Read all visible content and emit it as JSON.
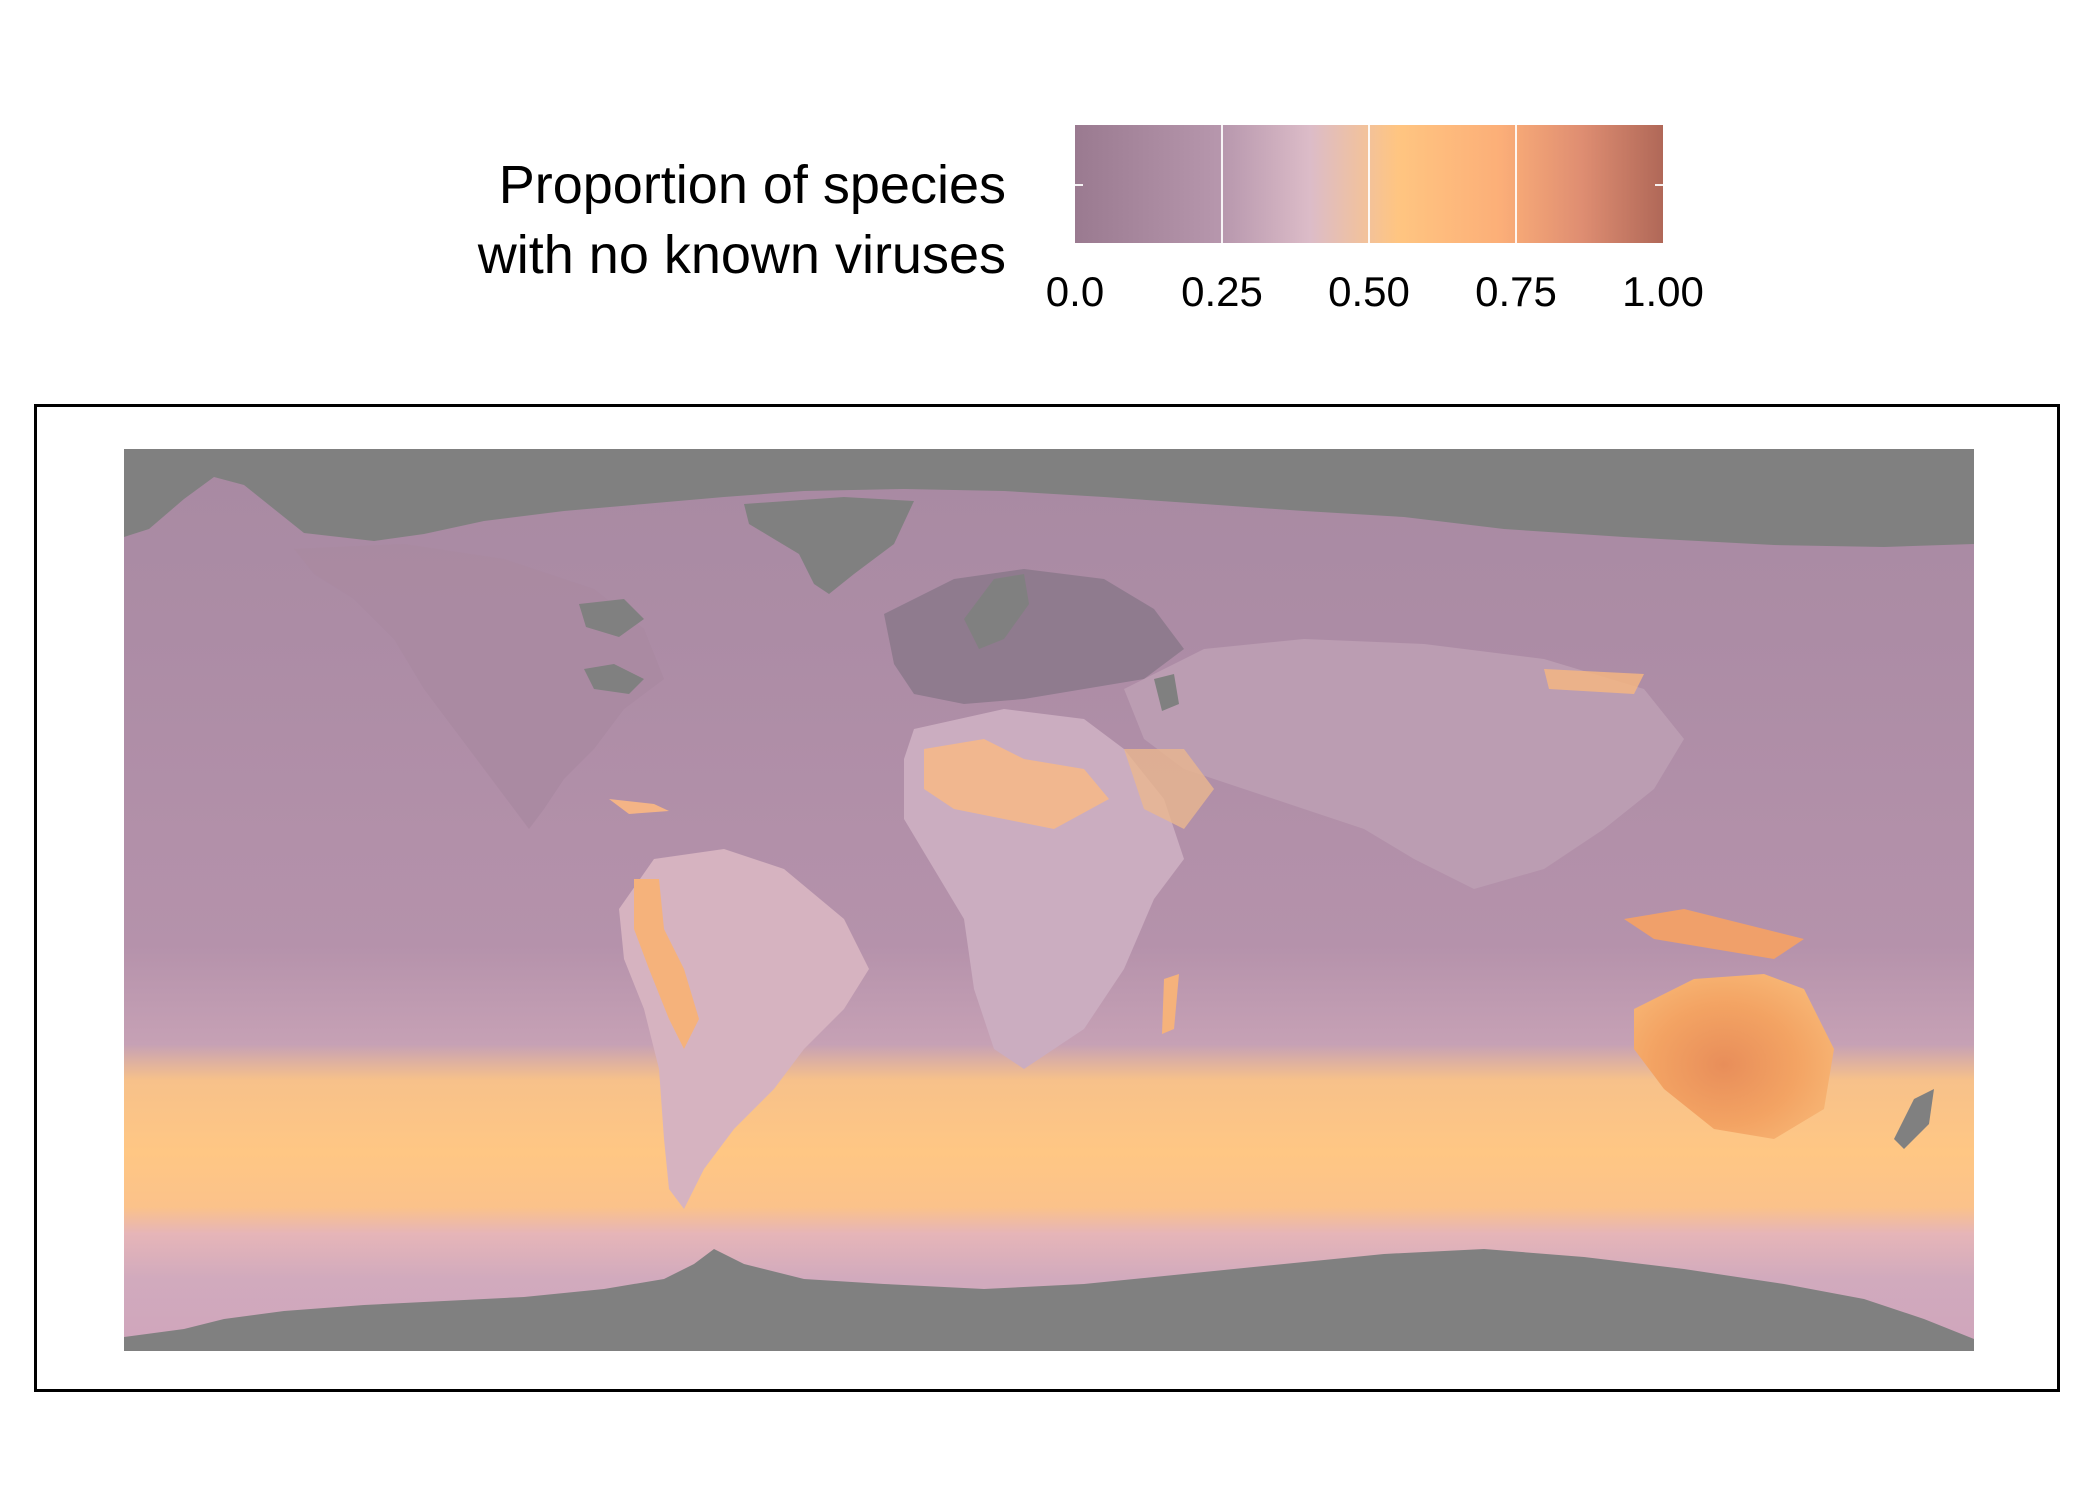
{
  "legend": {
    "title_line1": "Proportion of species",
    "title_line2": "with no known viruses",
    "ticks": [
      "0.0",
      "0.25",
      "0.50",
      "0.75",
      "1.00"
    ],
    "tick_values": [
      0.0,
      0.25,
      0.5,
      0.75,
      1.0
    ],
    "palette": [
      "#9a7a90",
      "#b797ad",
      "#dcbcc8",
      "#ffc581",
      "#fcaf78",
      "#df8e72",
      "#b06858"
    ],
    "no_data_color": "#808080"
  },
  "map": {
    "ocean_base_color": "#b592ab",
    "southern_band_color": "#ffc784",
    "australia_color": "#f09a5e",
    "sahara_color": "#f5b889"
  }
}
